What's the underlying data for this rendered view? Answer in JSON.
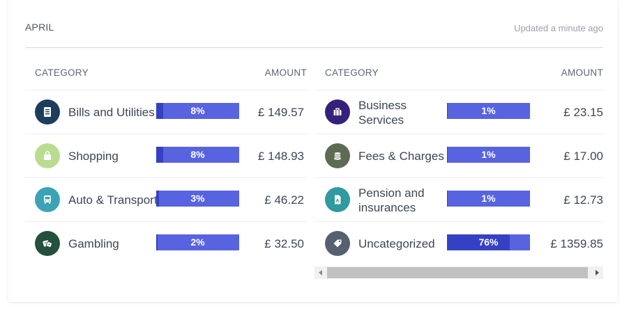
{
  "header": {
    "month": "APRIL",
    "updated": "Updated a minute ago"
  },
  "columns": {
    "category_label": "CATEGORY",
    "amount_label": "AMOUNT"
  },
  "left": [
    {
      "name": "Bills and Utilities",
      "percent": "8%",
      "fraction": 0.08,
      "amount": "£ 149.57",
      "icon": "document-icon",
      "color": "#1d3d5c"
    },
    {
      "name": "Shopping",
      "percent": "8%",
      "fraction": 0.08,
      "amount": "£ 148.93",
      "icon": "shopping-bag-icon",
      "color": "#b9dd8e"
    },
    {
      "name": "Auto & Transport",
      "percent": "3%",
      "fraction": 0.03,
      "amount": "£ 46.22",
      "icon": "bus-icon",
      "color": "#3aa3b5"
    },
    {
      "name": "Gambling",
      "percent": "2%",
      "fraction": 0.02,
      "amount": "£ 32.50",
      "icon": "dice-icon",
      "color": "#24503e"
    }
  ],
  "right": [
    {
      "name": "Business Services",
      "percent": "1%",
      "fraction": 0.01,
      "amount": "£ 23.15",
      "icon": "briefcase-icon",
      "color": "#35217a"
    },
    {
      "name": "Fees & Charges",
      "percent": "1%",
      "fraction": 0.01,
      "amount": "£ 17.00",
      "icon": "coins-icon",
      "color": "#5e6b53"
    },
    {
      "name": "Pension and insurances",
      "percent": "1%",
      "fraction": 0.01,
      "amount": "£ 12.73",
      "icon": "pension-document-icon",
      "color": "#2f9aa0"
    },
    {
      "name": "Uncategorized",
      "percent": "76%",
      "fraction": 0.76,
      "amount": "£ 1359.85",
      "icon": "tag-icon",
      "color": "#56606f"
    }
  ],
  "colors": {
    "bar": "#5863e0",
    "bar_fill": "#3541c4"
  }
}
